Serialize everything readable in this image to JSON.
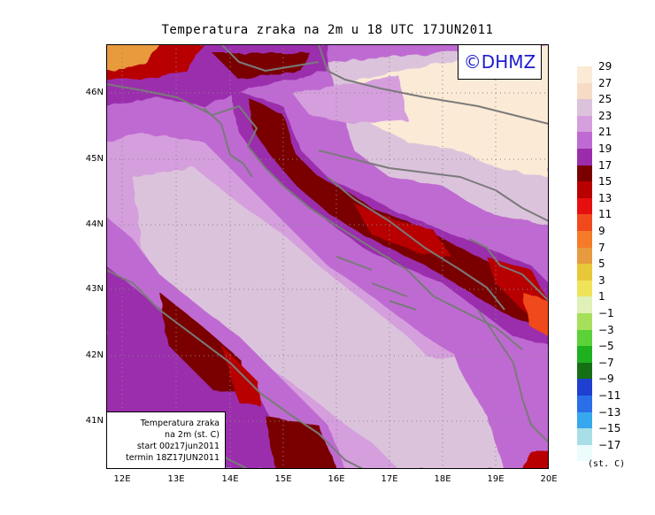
{
  "title": "Temperatura zraka na 2m u 18 UTC 17JUN2011",
  "logo": "©DHMZ",
  "info": {
    "line1": "Temperatura zraka",
    "line2": "na 2m (st. C)",
    "line3": "start 00z17jun2011",
    "line4": "termin 18Z17JUN2011"
  },
  "lat_labels": [
    "46N",
    "45N",
    "44N",
    "43N",
    "42N",
    "41N"
  ],
  "lon_labels": [
    "12E",
    "13E",
    "14E",
    "15E",
    "16E",
    "17E",
    "18E",
    "19E",
    "20E"
  ],
  "colorbar": {
    "labels": [
      "29",
      "27",
      "25",
      "23",
      "21",
      "19",
      "17",
      "15",
      "13",
      "11",
      "9",
      "7",
      "5",
      "3",
      "1",
      "−1",
      "−3",
      "−5",
      "−7",
      "−9",
      "−11",
      "−13",
      "−15",
      "−17"
    ],
    "colors": [
      "#fbead6",
      "#f6dcc4",
      "#dcc3dc",
      "#d59edd",
      "#bf6ad2",
      "#9b2dad",
      "#7a0000",
      "#b80000",
      "#e60f0f",
      "#f04a1c",
      "#f57b2a",
      "#e89a3e",
      "#e8c838",
      "#efe35a",
      "#dff0b8",
      "#a6e05a",
      "#5bd23a",
      "#1fb01f",
      "#156f15",
      "#1e3fd0",
      "#2a6ee8",
      "#37a8ee",
      "#a8dfe6",
      "#ecfbfb"
    ],
    "unit": "(st. C)"
  }
}
